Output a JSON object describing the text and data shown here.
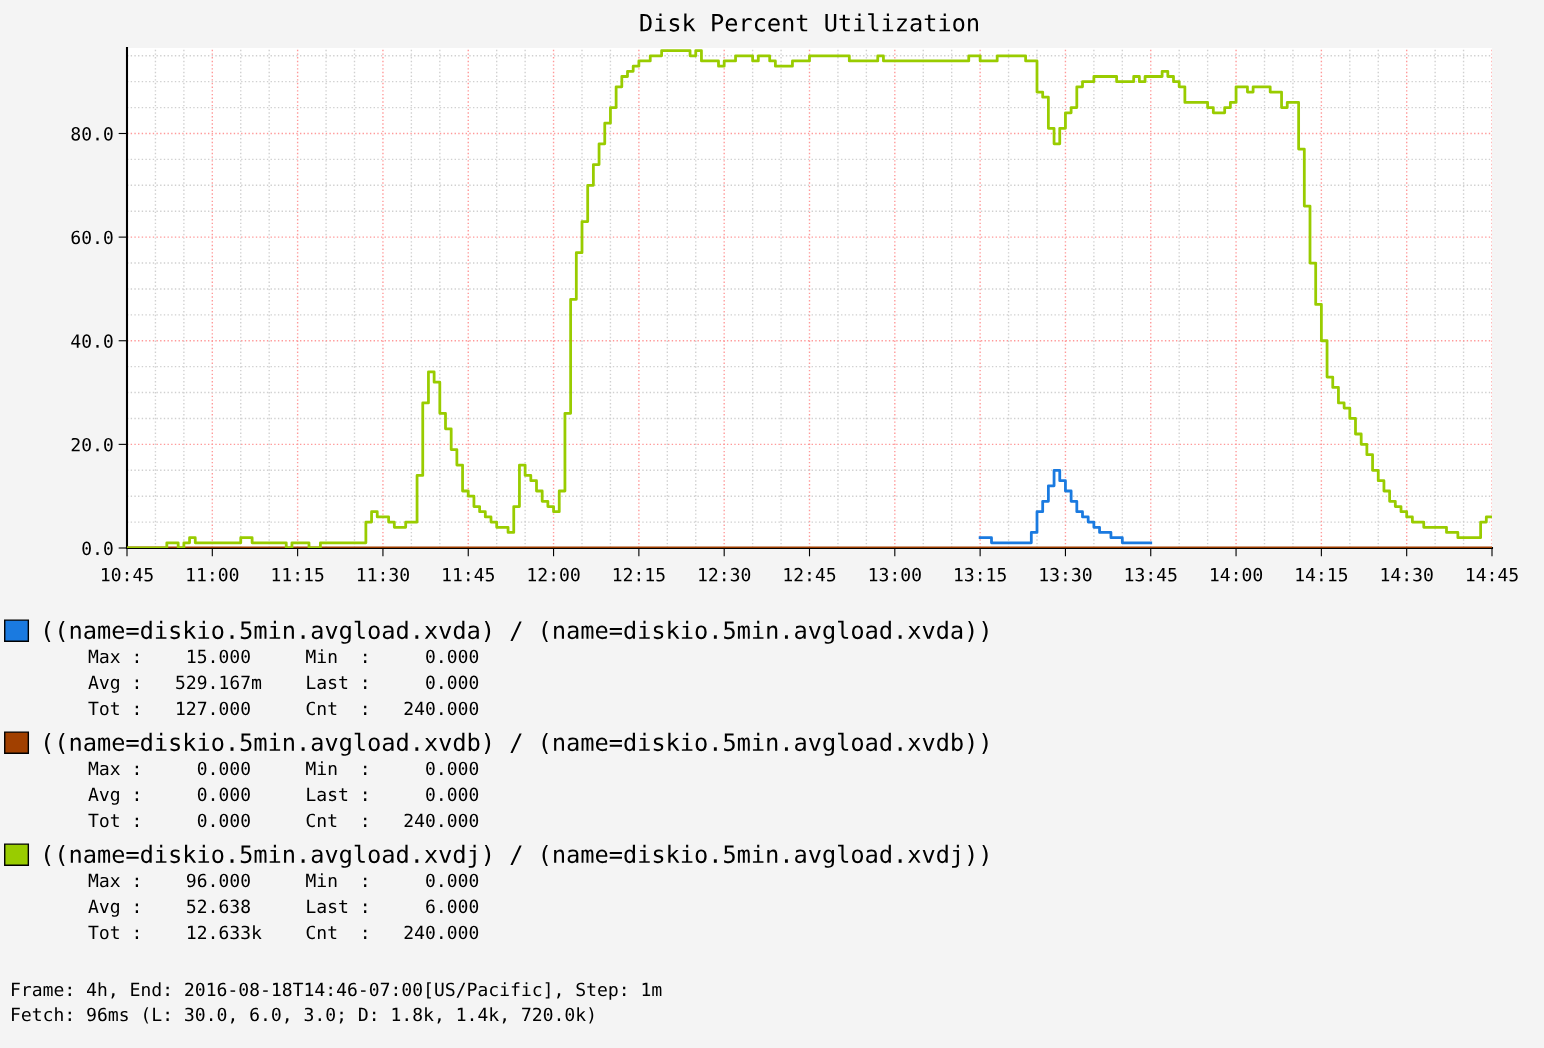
{
  "chart_data": {
    "type": "step",
    "title": "Disk Percent Utilization",
    "xlim": [
      "2016-08-18T10:45",
      "2016-08-18T14:45"
    ],
    "xticks": [
      {
        "value": "2016-08-18T10:45",
        "label": "10:45"
      },
      {
        "value": "2016-08-18T11:00",
        "label": "11:00"
      },
      {
        "value": "2016-08-18T11:15",
        "label": "11:15"
      },
      {
        "value": "2016-08-18T11:30",
        "label": "11:30"
      },
      {
        "value": "2016-08-18T11:45",
        "label": "11:45"
      },
      {
        "value": "2016-08-18T12:00",
        "label": "12:00"
      },
      {
        "value": "2016-08-18T12:15",
        "label": "12:15"
      },
      {
        "value": "2016-08-18T12:30",
        "label": "12:30"
      },
      {
        "value": "2016-08-18T12:45",
        "label": "12:45"
      },
      {
        "value": "2016-08-18T13:00",
        "label": "13:00"
      },
      {
        "value": "2016-08-18T13:15",
        "label": "13:15"
      },
      {
        "value": "2016-08-18T13:30",
        "label": "13:30"
      },
      {
        "value": "2016-08-18T13:45",
        "label": "13:45"
      },
      {
        "value": "2016-08-18T14:00",
        "label": "14:00"
      },
      {
        "value": "2016-08-18T14:15",
        "label": "14:15"
      },
      {
        "value": "2016-08-18T14:30",
        "label": "14:30"
      },
      {
        "value": "2016-08-18T14:45",
        "label": "14:45"
      }
    ],
    "ylim": [
      0,
      96.5
    ],
    "yticks": [
      {
        "value": 0,
        "label": "0.0"
      },
      {
        "value": 20,
        "label": "20.0"
      },
      {
        "value": 40,
        "label": "40.0"
      },
      {
        "value": 60,
        "label": "60.0"
      },
      {
        "value": 80,
        "label": "80.0"
      }
    ],
    "grid": true,
    "legend": "bottom",
    "series": [
      {
        "name": "((name=diskio.5min.avgload.xvda) / (name=diskio.5min.avgload.xvda))",
        "color": "#1a7ae0",
        "x": [
          "2016-08-18T13:15",
          "2016-08-18T13:17",
          "2016-08-18T13:24",
          "2016-08-18T13:25",
          "2016-08-18T13:26",
          "2016-08-18T13:27",
          "2016-08-18T13:28",
          "2016-08-18T13:29",
          "2016-08-18T13:30",
          "2016-08-18T13:31",
          "2016-08-18T13:32",
          "2016-08-18T13:33",
          "2016-08-18T13:34",
          "2016-08-18T13:35",
          "2016-08-18T13:36",
          "2016-08-18T13:38",
          "2016-08-18T13:40",
          "2016-08-18T13:45"
        ],
        "values": [
          2,
          1,
          3,
          7,
          9,
          12,
          15,
          13,
          11,
          9,
          7,
          6,
          5,
          4,
          3,
          2,
          1,
          1
        ]
      },
      {
        "name": "((name=diskio.5min.avgload.xvdb) / (name=diskio.5min.avgload.xvdb))",
        "color": "#a14000",
        "x": [
          "2016-08-18T10:45",
          "2016-08-18T14:45"
        ],
        "values": [
          0,
          0
        ]
      },
      {
        "name": "((name=diskio.5min.avgload.xvdj) / (name=diskio.5min.avgload.xvdj))",
        "color": "#99cc00",
        "x": [
          "2016-08-18T10:45",
          "2016-08-18T10:52",
          "2016-08-18T10:54",
          "2016-08-18T10:55",
          "2016-08-18T10:56",
          "2016-08-18T10:57",
          "2016-08-18T11:05",
          "2016-08-18T11:07",
          "2016-08-18T11:13",
          "2016-08-18T11:14",
          "2016-08-18T11:17",
          "2016-08-18T11:19",
          "2016-08-18T11:27",
          "2016-08-18T11:28",
          "2016-08-18T11:29",
          "2016-08-18T11:31",
          "2016-08-18T11:32",
          "2016-08-18T11:34",
          "2016-08-18T11:36",
          "2016-08-18T11:37",
          "2016-08-18T11:38",
          "2016-08-18T11:39",
          "2016-08-18T11:40",
          "2016-08-18T11:41",
          "2016-08-18T11:42",
          "2016-08-18T11:43",
          "2016-08-18T11:44",
          "2016-08-18T11:45",
          "2016-08-18T11:46",
          "2016-08-18T11:47",
          "2016-08-18T11:48",
          "2016-08-18T11:49",
          "2016-08-18T11:50",
          "2016-08-18T11:52",
          "2016-08-18T11:53",
          "2016-08-18T11:54",
          "2016-08-18T11:55",
          "2016-08-18T11:56",
          "2016-08-18T11:57",
          "2016-08-18T11:58",
          "2016-08-18T11:59",
          "2016-08-18T12:00",
          "2016-08-18T12:01",
          "2016-08-18T12:02",
          "2016-08-18T12:03",
          "2016-08-18T12:04",
          "2016-08-18T12:05",
          "2016-08-18T12:06",
          "2016-08-18T12:07",
          "2016-08-18T12:08",
          "2016-08-18T12:09",
          "2016-08-18T12:10",
          "2016-08-18T12:11",
          "2016-08-18T12:12",
          "2016-08-18T12:13",
          "2016-08-18T12:14",
          "2016-08-18T12:15",
          "2016-08-18T12:17",
          "2016-08-18T12:19",
          "2016-08-18T12:24",
          "2016-08-18T12:25",
          "2016-08-18T12:26",
          "2016-08-18T12:29",
          "2016-08-18T12:30",
          "2016-08-18T12:32",
          "2016-08-18T12:35",
          "2016-08-18T12:36",
          "2016-08-18T12:38",
          "2016-08-18T12:39",
          "2016-08-18T12:42",
          "2016-08-18T12:45",
          "2016-08-18T12:52",
          "2016-08-18T12:57",
          "2016-08-18T12:58",
          "2016-08-18T13:13",
          "2016-08-18T13:15",
          "2016-08-18T13:18",
          "2016-08-18T13:23",
          "2016-08-18T13:25",
          "2016-08-18T13:26",
          "2016-08-18T13:27",
          "2016-08-18T13:28",
          "2016-08-18T13:29",
          "2016-08-18T13:30",
          "2016-08-18T13:31",
          "2016-08-18T13:32",
          "2016-08-18T13:33",
          "2016-08-18T13:35",
          "2016-08-18T13:39",
          "2016-08-18T13:42",
          "2016-08-18T13:43",
          "2016-08-18T13:44",
          "2016-08-18T13:47",
          "2016-08-18T13:48",
          "2016-08-18T13:49",
          "2016-08-18T13:50",
          "2016-08-18T13:51",
          "2016-08-18T13:55",
          "2016-08-18T13:56",
          "2016-08-18T13:58",
          "2016-08-18T13:59",
          "2016-08-18T14:00",
          "2016-08-18T14:02",
          "2016-08-18T14:03",
          "2016-08-18T14:06",
          "2016-08-18T14:08",
          "2016-08-18T14:09",
          "2016-08-18T14:11",
          "2016-08-18T14:12",
          "2016-08-18T14:13",
          "2016-08-18T14:14",
          "2016-08-18T14:15",
          "2016-08-18T14:16",
          "2016-08-18T14:17",
          "2016-08-18T14:18",
          "2016-08-18T14:19",
          "2016-08-18T14:20",
          "2016-08-18T14:21",
          "2016-08-18T14:22",
          "2016-08-18T14:23",
          "2016-08-18T14:24",
          "2016-08-18T14:25",
          "2016-08-18T14:26",
          "2016-08-18T14:27",
          "2016-08-18T14:28",
          "2016-08-18T14:29",
          "2016-08-18T14:30",
          "2016-08-18T14:31",
          "2016-08-18T14:33",
          "2016-08-18T14:37",
          "2016-08-18T14:39",
          "2016-08-18T14:43",
          "2016-08-18T14:44",
          "2016-08-18T14:45"
        ],
        "values": [
          0,
          1,
          0,
          1,
          2,
          1,
          2,
          1,
          0,
          1,
          0,
          1,
          5,
          7,
          6,
          5,
          4,
          5,
          14,
          28,
          34,
          32,
          26,
          23,
          19,
          16,
          11,
          10,
          8,
          7,
          6,
          5,
          4,
          3,
          8,
          16,
          14,
          13,
          11,
          9,
          8,
          7,
          11,
          26,
          48,
          57,
          63,
          70,
          74,
          78,
          82,
          85,
          89,
          91,
          92,
          93,
          94,
          95,
          96,
          95,
          96,
          94,
          93,
          94,
          95,
          94,
          95,
          94,
          93,
          94,
          95,
          94,
          95,
          94,
          95,
          94,
          95,
          94,
          88,
          87,
          81,
          78,
          81,
          84,
          85,
          89,
          90,
          91,
          90,
          91,
          90,
          91,
          92,
          91,
          90,
          89,
          86,
          85,
          84,
          85,
          86,
          89,
          88,
          89,
          88,
          85,
          86,
          77,
          66,
          55,
          47,
          40,
          33,
          31,
          28,
          27,
          25,
          22,
          20,
          18,
          15,
          13,
          11,
          9,
          8,
          7,
          6,
          5,
          4,
          3,
          2,
          5,
          6,
          6
        ]
      }
    ],
    "annotations": [
      "Max :    15.000     Min  :     0.000",
      "Avg :   529.167m    Last :     0.000",
      "Tot :   127.000     Cnt  :   240.000",
      "Max :     0.000     Min  :     0.000",
      "Avg :     0.000     Last :     0.000",
      "Tot :     0.000     Cnt  :   240.000",
      "Max :    96.000     Min  :     0.000",
      "Avg :    52.638     Last :     6.000",
      "Tot :    12.633k    Cnt  :   240.000",
      "Frame: 4h, End: 2016-08-18T14:46-07:00[US/Pacific], Step: 1m",
      "Fetch: 96ms (L: 30.0, 6.0, 3.0; D: 1.8k, 1.4k, 720.0k)"
    ]
  }
}
